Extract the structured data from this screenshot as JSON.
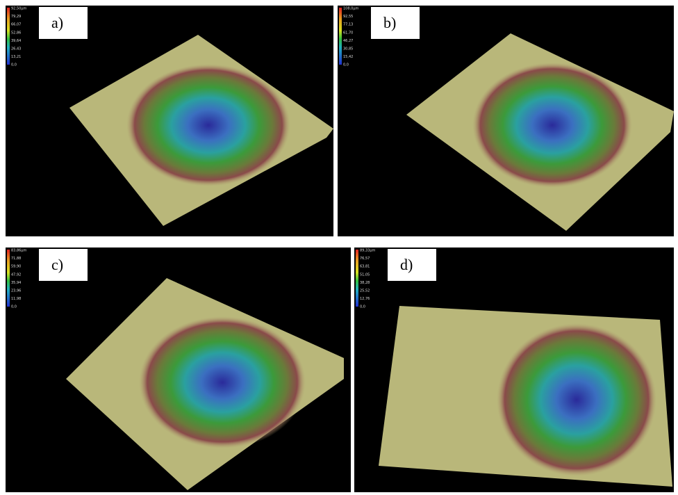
{
  "panels": [
    {
      "label": "a)",
      "scale": [
        "92,50µm",
        "79,29",
        "66,07",
        "52,86",
        "39,64",
        "26,43",
        "13,21",
        "0,0"
      ]
    },
    {
      "label": "b)",
      "scale": [
        "108,0µm",
        "92,55",
        "77,13",
        "61,70",
        "46,27",
        "30,85",
        "15,42",
        "0,0"
      ]
    },
    {
      "label": "c)",
      "scale": [
        "83,86µm",
        "71,88",
        "59,90",
        "47,92",
        "35,94",
        "23,96",
        "11,98",
        "0,0"
      ]
    },
    {
      "label": "d)",
      "scale": [
        "89,33µm",
        "76,57",
        "63,81",
        "51,05",
        "38,28",
        "25,52",
        "12,76",
        "0,0"
      ]
    }
  ]
}
